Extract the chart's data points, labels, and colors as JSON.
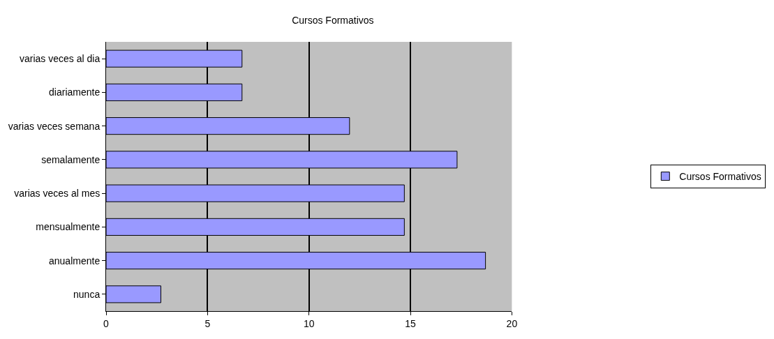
{
  "chart_data": {
    "type": "bar",
    "orientation": "horizontal",
    "title": "Cursos Formativos",
    "categories": [
      "varias veces al dia",
      "diariamente",
      "varias veces semana",
      "semalamente",
      "varias veces al mes",
      "mensualmente",
      "anualmente",
      "nunca"
    ],
    "series": [
      {
        "name": "Cursos Formativos",
        "color": "#9999ff",
        "values": [
          6.7,
          6.7,
          12,
          17.3,
          14.7,
          14.7,
          18.7,
          2.7
        ]
      }
    ],
    "xlim": [
      0,
      20
    ],
    "xticks": [
      0,
      5,
      10,
      15,
      20
    ],
    "grid": "x",
    "legend": "right"
  }
}
